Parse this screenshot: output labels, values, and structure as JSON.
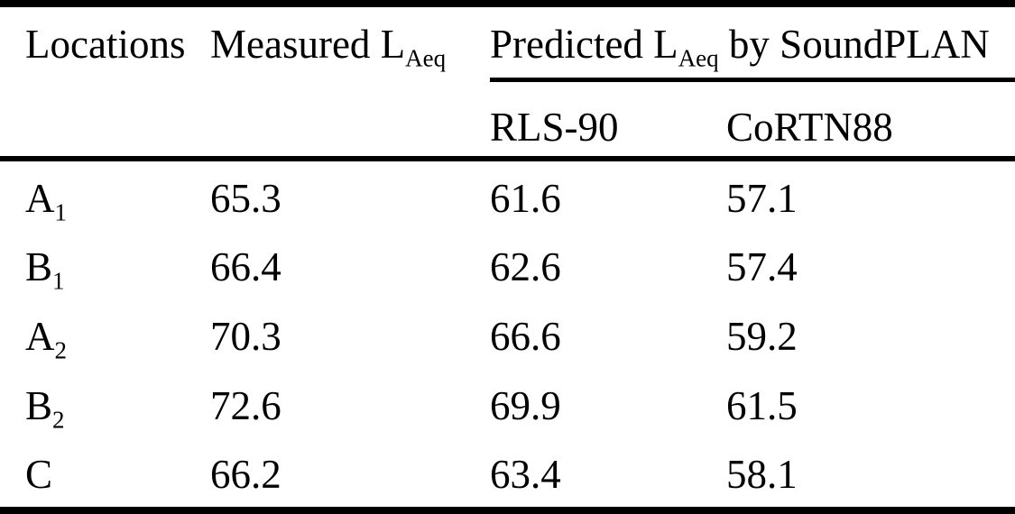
{
  "table": {
    "header": {
      "locations": "Locations",
      "measured": {
        "prefix": "Measured L",
        "sub": "Aeq"
      },
      "predicted": {
        "prefix": "Predicted L",
        "sub": "Aeq",
        "suffix": " by SoundPLAN"
      },
      "sub_columns": [
        "RLS-90",
        "CoRTN88"
      ]
    },
    "rows": [
      {
        "location": {
          "base": "A",
          "sub": "1"
        },
        "measured": "65.3",
        "rls90": "61.6",
        "cortn88": "57.1"
      },
      {
        "location": {
          "base": "B",
          "sub": "1"
        },
        "measured": "66.4",
        "rls90": "62.6",
        "cortn88": "57.4"
      },
      {
        "location": {
          "base": "A",
          "sub": "2"
        },
        "measured": "70.3",
        "rls90": "66.6",
        "cortn88": "59.2"
      },
      {
        "location": {
          "base": "B",
          "sub": "2"
        },
        "measured": "72.6",
        "rls90": "69.9",
        "cortn88": "61.5"
      },
      {
        "location": {
          "base": "C",
          "sub": ""
        },
        "measured": "66.2",
        "rls90": "63.4",
        "cortn88": "58.1"
      }
    ]
  },
  "colors": {
    "text": "#000000",
    "background": "#ffffff",
    "rule": "#000000"
  }
}
